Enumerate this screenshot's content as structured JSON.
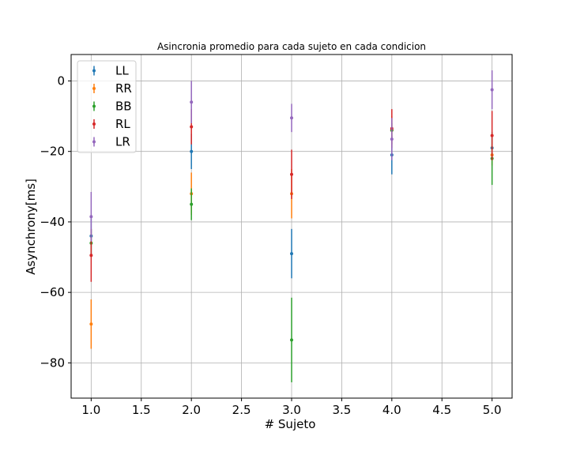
{
  "chart_data": {
    "type": "scatter",
    "title": "Asincronia promedio para cada sujeto en cada condicion",
    "xlabel": "# Sujeto",
    "ylabel": "Asynchrony[ms]",
    "xlim": [
      0.8,
      5.2
    ],
    "ylim": [
      -90,
      7.5
    ],
    "x_ticks": [
      1.0,
      1.5,
      2.0,
      2.5,
      3.0,
      3.5,
      4.0,
      4.5,
      5.0
    ],
    "x_tick_labels": [
      "1.0",
      "1.5",
      "2.0",
      "2.5",
      "3.0",
      "3.5",
      "4.0",
      "4.5",
      "5.0"
    ],
    "y_ticks": [
      0,
      -20,
      -40,
      -60,
      -80
    ],
    "y_tick_labels": [
      "0",
      "−20",
      "−40",
      "−60",
      "−80"
    ],
    "grid": true,
    "legend_position": "top-left",
    "error_bars": true,
    "series": [
      {
        "name": "LL",
        "color": "#1f77b4",
        "points": [
          [
            1.0,
            -44,
            5
          ],
          [
            2.0,
            -20,
            5
          ],
          [
            3.0,
            -49,
            7
          ],
          [
            4.0,
            -21,
            5.5
          ],
          [
            5.0,
            -19,
            3
          ]
        ]
      },
      {
        "name": "RR",
        "color": "#ff7f0e",
        "points": [
          [
            1.0,
            -69,
            7
          ],
          [
            2.0,
            -32,
            6
          ],
          [
            3.0,
            -32,
            7
          ],
          [
            4.0,
            -14,
            4
          ],
          [
            5.0,
            -21,
            3
          ]
        ]
      },
      {
        "name": "BB",
        "color": "#2ca02c",
        "points": [
          [
            1.0,
            -46,
            4
          ],
          [
            2.0,
            -35,
            4.5
          ],
          [
            3.0,
            -73.5,
            12
          ],
          [
            4.0,
            -14,
            2
          ],
          [
            5.0,
            -22,
            7.5
          ]
        ]
      },
      {
        "name": "RL",
        "color": "#d62728",
        "points": [
          [
            1.0,
            -49.5,
            7.5
          ],
          [
            2.0,
            -13,
            5
          ],
          [
            3.0,
            -26.5,
            7
          ],
          [
            4.0,
            -13.5,
            5.5
          ],
          [
            5.0,
            -15.5,
            7
          ]
        ]
      },
      {
        "name": "LR",
        "color": "#9467bd",
        "points": [
          [
            1.0,
            -38.5,
            7
          ],
          [
            2.0,
            -6,
            6
          ],
          [
            3.0,
            -10.5,
            4
          ],
          [
            4.0,
            -16.5,
            6
          ],
          [
            5.0,
            -2.5,
            5.5
          ]
        ]
      }
    ]
  }
}
